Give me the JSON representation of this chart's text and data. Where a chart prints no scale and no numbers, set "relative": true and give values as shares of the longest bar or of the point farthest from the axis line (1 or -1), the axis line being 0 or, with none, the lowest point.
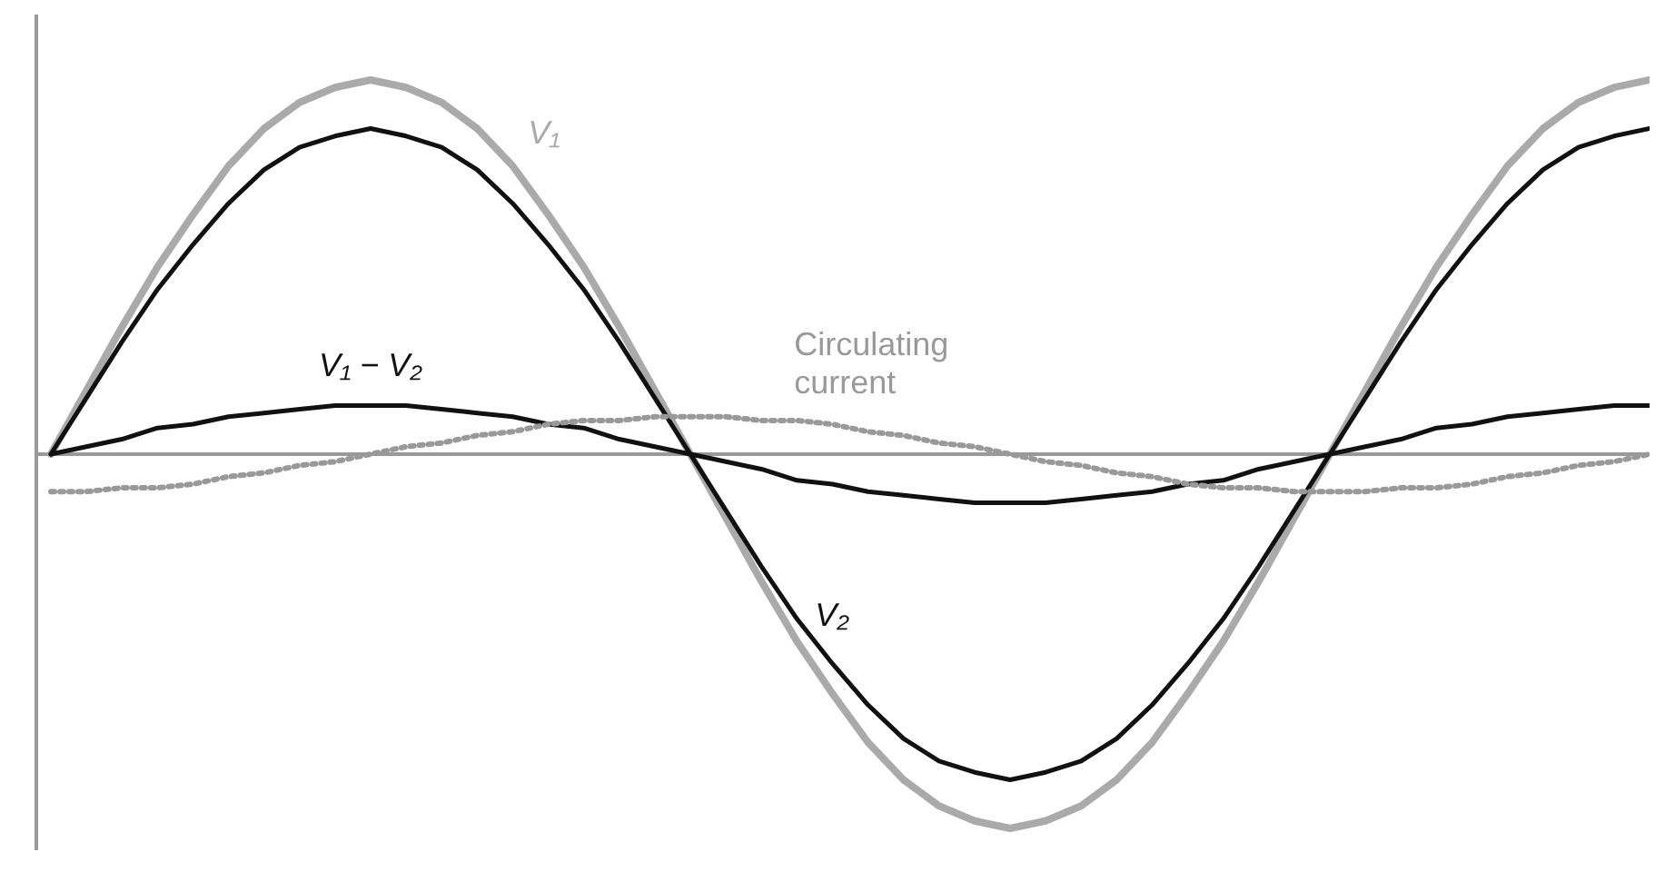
{
  "chart_data": {
    "type": "line",
    "relative": true,
    "categories": [
      null,
      null,
      null,
      null,
      null,
      null,
      null,
      null,
      null,
      null,
      null,
      null,
      null,
      null,
      null,
      null,
      null,
      null,
      null,
      null,
      null,
      null,
      null,
      null,
      null,
      null,
      null,
      null,
      null,
      null,
      null,
      null,
      null,
      null,
      null,
      null,
      null,
      null,
      null,
      null,
      null,
      null,
      null,
      null,
      null,
      null
    ],
    "series": [
      {
        "name": "V₁",
        "color": "#aaaaaa",
        "line_style": "solid",
        "values": [
          0,
          0.17,
          0.34,
          0.5,
          0.64,
          0.77,
          0.87,
          0.94,
          0.98,
          1,
          0.98,
          0.94,
          0.87,
          0.77,
          0.64,
          0.5,
          0.34,
          0.17,
          0,
          -0.17,
          -0.34,
          -0.5,
          -0.64,
          -0.77,
          -0.87,
          -0.94,
          -0.98,
          -1,
          -0.98,
          -0.94,
          -0.87,
          -0.77,
          -0.64,
          -0.5,
          -0.34,
          -0.17,
          0,
          0.17,
          0.34,
          0.5,
          0.64,
          0.77,
          0.87,
          0.94,
          0.98,
          1
        ]
      },
      {
        "name": "V₂",
        "color": "#111111",
        "line_style": "solid",
        "values": [
          0,
          0.15,
          0.3,
          0.44,
          0.56,
          0.67,
          0.76,
          0.82,
          0.85,
          0.87,
          0.85,
          0.82,
          0.76,
          0.67,
          0.56,
          0.44,
          0.3,
          0.15,
          0,
          -0.15,
          -0.3,
          -0.44,
          -0.56,
          -0.67,
          -0.76,
          -0.82,
          -0.85,
          -0.87,
          -0.85,
          -0.82,
          -0.76,
          -0.67,
          -0.56,
          -0.44,
          -0.3,
          -0.15,
          0,
          0.15,
          0.3,
          0.44,
          0.56,
          0.67,
          0.76,
          0.82,
          0.85,
          0.87
        ]
      },
      {
        "name": "V₁ − V₂",
        "color": "#111111",
        "line_style": "solid",
        "values": [
          0,
          0.02,
          0.04,
          0.07,
          0.08,
          0.1,
          0.11,
          0.12,
          0.13,
          0.13,
          0.13,
          0.12,
          0.11,
          0.1,
          0.08,
          0.07,
          0.04,
          0.02,
          0,
          -0.02,
          -0.04,
          -0.07,
          -0.08,
          -0.1,
          -0.11,
          -0.12,
          -0.13,
          -0.13,
          -0.13,
          -0.12,
          -0.11,
          -0.1,
          -0.08,
          -0.07,
          -0.04,
          -0.02,
          0,
          0.02,
          0.04,
          0.07,
          0.08,
          0.1,
          0.11,
          0.12,
          0.13,
          0.13
        ]
      },
      {
        "name": "Circulating current",
        "color": "#999999",
        "line_style": "dotted",
        "values": [
          -0.1,
          -0.1,
          -0.09,
          -0.09,
          -0.08,
          -0.06,
          -0.05,
          -0.03,
          -0.02,
          0,
          0.02,
          0.03,
          0.05,
          0.06,
          0.08,
          0.09,
          0.09,
          0.1,
          0.1,
          0.1,
          0.09,
          0.09,
          0.08,
          0.06,
          0.05,
          0.03,
          0.02,
          0,
          -0.02,
          -0.03,
          -0.05,
          -0.06,
          -0.08,
          -0.09,
          -0.09,
          -0.1,
          -0.1,
          -0.1,
          -0.09,
          -0.09,
          -0.08,
          -0.06,
          -0.05,
          -0.03,
          -0.02,
          0
        ]
      }
    ]
  }
}
